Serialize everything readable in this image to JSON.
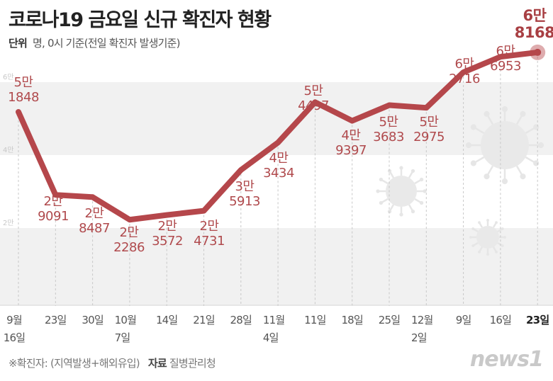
{
  "title": "코로나19 금요일 신규 확진자 현황",
  "unit_label": "단위",
  "unit_text": "명, 0시 기준(전일 확진자 발생기준)",
  "footnote": "※확진자: (지역발생+해외유입)",
  "source_label": "자료",
  "source": "질병관리청",
  "logo": "news1",
  "chart_data": {
    "type": "line",
    "title": "코로나19 금요일 신규 확진자 현황",
    "categories": [
      [
        "9월",
        "16일"
      ],
      [
        "23일"
      ],
      [
        "30일"
      ],
      [
        "10월",
        "7일"
      ],
      [
        "14일"
      ],
      [
        "21일"
      ],
      [
        "28일"
      ],
      [
        "11월",
        "4일"
      ],
      [
        "11일"
      ],
      [
        "18일"
      ],
      [
        "25일"
      ],
      [
        "12월",
        "2일"
      ],
      [
        "9일"
      ],
      [
        "16일"
      ],
      [
        "23일"
      ]
    ],
    "values": [
      51848,
      29091,
      28487,
      22286,
      23572,
      24731,
      35913,
      43434,
      54497,
      49397,
      53683,
      52975,
      62716,
      66953,
      68168
    ],
    "value_labels": [
      [
        "5만",
        "1848"
      ],
      [
        "2만",
        "9091"
      ],
      [
        "2만",
        "8487"
      ],
      [
        "2만",
        "2286"
      ],
      [
        "2만",
        "3572"
      ],
      [
        "2만",
        "4731"
      ],
      [
        "3만",
        "5913"
      ],
      [
        "4만",
        "3434"
      ],
      [
        "5만",
        "4497"
      ],
      [
        "4만",
        "9397"
      ],
      [
        "5만",
        "3683"
      ],
      [
        "5만",
        "2975"
      ],
      [
        "6만",
        "2716"
      ],
      [
        "6만",
        "6953"
      ],
      [
        "6만",
        "8168"
      ]
    ],
    "yticks": [
      {
        "value": 20000,
        "label": "2만"
      },
      {
        "value": 40000,
        "label": "4만"
      },
      {
        "value": 60000,
        "label": "6만"
      }
    ],
    "ylim": [
      0,
      60000
    ],
    "line_color": "#b5474b",
    "grid": "bands"
  }
}
